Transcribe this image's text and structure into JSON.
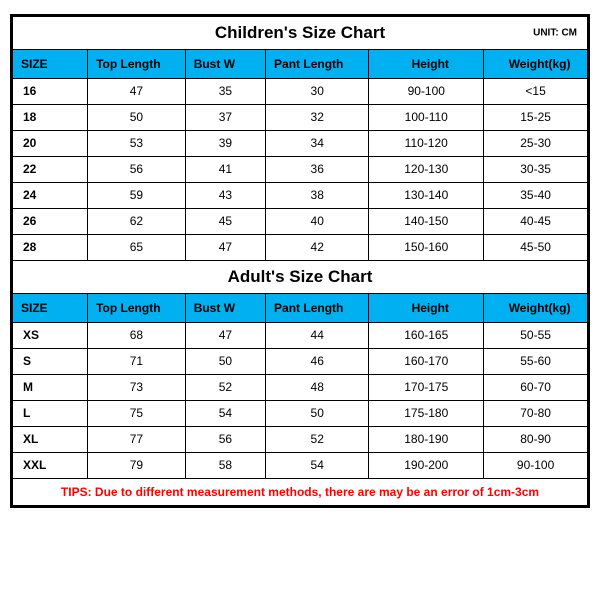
{
  "children_chart": {
    "title": "Children's Size Chart",
    "unit_label": "UNIT: CM",
    "columns": [
      "SIZE",
      "Top Length",
      "Bust W",
      "Pant Length",
      "Height",
      "Weight(kg)"
    ],
    "rows": [
      [
        "16",
        "47",
        "35",
        "30",
        "90-100",
        "<15"
      ],
      [
        "18",
        "50",
        "37",
        "32",
        "100-110",
        "15-25"
      ],
      [
        "20",
        "53",
        "39",
        "34",
        "110-120",
        "25-30"
      ],
      [
        "22",
        "56",
        "41",
        "36",
        "120-130",
        "30-35"
      ],
      [
        "24",
        "59",
        "43",
        "38",
        "130-140",
        "35-40"
      ],
      [
        "26",
        "62",
        "45",
        "40",
        "140-150",
        "40-45"
      ],
      [
        "28",
        "65",
        "47",
        "42",
        "150-160",
        "45-50"
      ]
    ]
  },
  "adult_chart": {
    "title": "Adult's Size Chart",
    "columns": [
      "SIZE",
      "Top Length",
      "Bust W",
      "Pant Length",
      "Height",
      "Weight(kg)"
    ],
    "rows": [
      [
        "XS",
        "68",
        "47",
        "44",
        "160-165",
        "50-55"
      ],
      [
        "S",
        "71",
        "50",
        "46",
        "160-170",
        "55-60"
      ],
      [
        "M",
        "73",
        "52",
        "48",
        "170-175",
        "60-70"
      ],
      [
        "L",
        "75",
        "54",
        "50",
        "175-180",
        "70-80"
      ],
      [
        "XL",
        "77",
        "56",
        "52",
        "180-190",
        "80-90"
      ],
      [
        "XXL",
        "79",
        "58",
        "54",
        "190-200",
        "90-100"
      ]
    ]
  },
  "tips": "TIPS: Due to different measurement methods, there are may be an error of 1cm-3cm",
  "style": {
    "header_bg": "#00b0f0",
    "border_color": "#000000",
    "tips_color": "#ff0000",
    "background": "#ffffff",
    "title_fontsize": 17,
    "cell_fontsize": 12,
    "unit_fontsize": 10
  }
}
